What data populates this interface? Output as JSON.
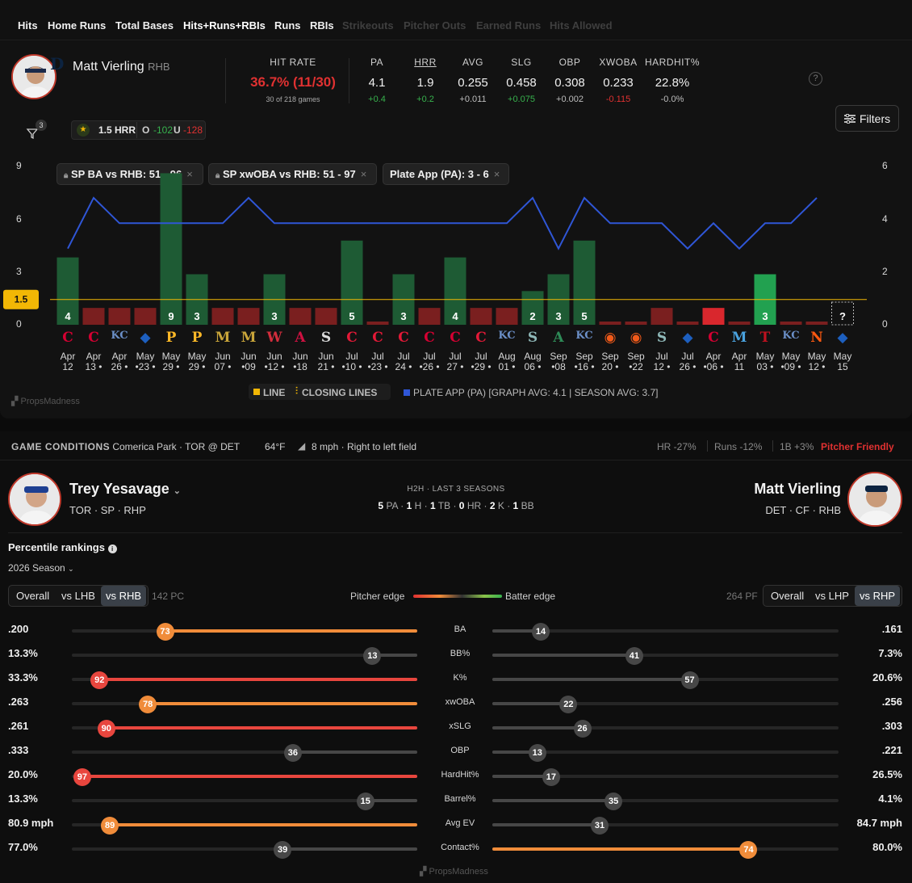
{
  "tabs": [
    {
      "label": "Hits",
      "state": "normal"
    },
    {
      "label": "Home Runs",
      "state": "normal"
    },
    {
      "label": "Total Bases",
      "state": "normal"
    },
    {
      "label": "Hits+Runs+RBIs",
      "state": "active"
    },
    {
      "label": "Runs",
      "state": "normal"
    },
    {
      "label": "RBIs",
      "state": "normal"
    },
    {
      "label": "Strikeouts",
      "state": "dim"
    },
    {
      "label": "Pitcher Outs",
      "state": "dim"
    },
    {
      "label": "Earned Runs",
      "state": "dim"
    },
    {
      "label": "Hits Allowed",
      "state": "dim"
    }
  ],
  "player": {
    "name": "Matt Vierling",
    "handed": "RHB",
    "line": "1.5 HRR",
    "over_label": "O",
    "over_odds": "-102",
    "under_label": "U",
    "under_odds": "-128"
  },
  "hit_rate": {
    "label": "HIT RATE",
    "value": "36.7% (11/30)",
    "sub": "30 of 218 games"
  },
  "stats": [
    {
      "h": "PA",
      "v": "4.1",
      "d": "+0.4",
      "c": "green"
    },
    {
      "h": "HRR",
      "v": "1.9",
      "d": "+0.2",
      "c": "green"
    },
    {
      "h": "AVG",
      "v": "0.255",
      "d": "+0.011",
      "c": "gray"
    },
    {
      "h": "SLG",
      "v": "0.458",
      "d": "+0.075",
      "c": "green"
    },
    {
      "h": "OBP",
      "v": "0.308",
      "d": "+0.002",
      "c": "gray"
    },
    {
      "h": "XWOBA",
      "v": "0.233",
      "d": "-0.115",
      "c": "red"
    },
    {
      "h": "HARDHIT%",
      "v": "22.8%",
      "d": "-0.0%",
      "c": "gray"
    }
  ],
  "filters_label": "Filters",
  "filter_count": "3",
  "chips": [
    "SP BA vs RHB: 51 - 96",
    "SP xwOBA vs RHB: 51 - 97",
    "Plate App (PA): 3 - 6"
  ],
  "chart_data": {
    "type": "bar",
    "line_value": 1.5,
    "line_label": "1.5",
    "left_ticks": [
      "9",
      "6",
      "3",
      "0"
    ],
    "right_ticks": [
      "6",
      "4",
      "2",
      "0"
    ],
    "ylim": [
      0,
      9.5
    ],
    "y2lim": [
      0,
      6.3
    ],
    "values": [
      4,
      1,
      1,
      1,
      9,
      3,
      1,
      1,
      3,
      1,
      1,
      5,
      0,
      3,
      1,
      4,
      1,
      1,
      2,
      3,
      5,
      0,
      0,
      1,
      0,
      1,
      0,
      3,
      0,
      0,
      null
    ],
    "bar_labels": [
      "4",
      "",
      "",
      "",
      "9",
      "3",
      "",
      "",
      "3",
      "",
      "",
      "5",
      "",
      "3",
      "",
      "4",
      "",
      "",
      "2",
      "3",
      "5",
      "",
      "",
      "",
      "",
      "",
      "",
      "3",
      "",
      "",
      "?"
    ],
    "pa": [
      3,
      5,
      4,
      4,
      4,
      4,
      4,
      5,
      4,
      4,
      4,
      4,
      4,
      4,
      4,
      4,
      4,
      4,
      5,
      3,
      5,
      4,
      4,
      4,
      3,
      4,
      3,
      4,
      4,
      5,
      null
    ],
    "dates": [
      [
        "Apr",
        "12"
      ],
      [
        "Apr",
        "13 •"
      ],
      [
        "Apr",
        "26 •"
      ],
      [
        "May",
        "•23 •"
      ],
      [
        "May",
        "29 •"
      ],
      [
        "May",
        "29 •"
      ],
      [
        "Jun",
        "07 •"
      ],
      [
        "Jun",
        "•09"
      ],
      [
        "Jun",
        "•12 •"
      ],
      [
        "Jun",
        "•18"
      ],
      [
        "Jun",
        "21 •"
      ],
      [
        "Jul",
        "•10 •"
      ],
      [
        "Jul",
        "•23 •"
      ],
      [
        "Jul",
        "24 •"
      ],
      [
        "Jul",
        "•26 •"
      ],
      [
        "Jul",
        "27 •"
      ],
      [
        "Jul",
        "•29 •"
      ],
      [
        "Aug",
        "01 •"
      ],
      [
        "Aug",
        "06 •"
      ],
      [
        "Sep",
        "•08"
      ],
      [
        "Sep",
        "•16 •"
      ],
      [
        "Sep",
        "20 •"
      ],
      [
        "Sep",
        "•22"
      ],
      [
        "Jul",
        "12 •"
      ],
      [
        "Jul",
        "26 •"
      ],
      [
        "Apr",
        "•06 •"
      ],
      [
        "Apr",
        "11"
      ],
      [
        "May",
        "03 •"
      ],
      [
        "May",
        "•09 •"
      ],
      [
        "May",
        "12 •"
      ],
      [
        "May",
        "15"
      ]
    ],
    "opponents": [
      "CIN",
      "CIN",
      "KC",
      "TOR",
      "PIT",
      "PIT",
      "MIL",
      "MIL",
      "WSH",
      "ATL",
      "CWS",
      "CLE",
      "CLE",
      "CLE",
      "CIN",
      "CIN",
      "CLE",
      "KC",
      "SEA",
      "OAK",
      "KC",
      "BAL",
      "BAL",
      "SEA",
      "TOR",
      "CIN",
      "MIA",
      "TEX",
      "KC",
      "NYM",
      "TOR"
    ],
    "legend": [
      "LINE",
      "CLOSING LINES",
      "PLATE APP (PA) [GRAPH AVG: 4.1 | SEASON AVG: 3.7]"
    ],
    "watermark": "PropsMadness",
    "colors": {
      "over": "#1e5b34",
      "over_bright": "#22a150",
      "under": "#7a1f1f",
      "under_bright": "#d9272d",
      "pa": "#2f56d6",
      "line": "#f2b705"
    }
  },
  "conditions": {
    "label": "GAME CONDITIONS",
    "park": "· Comerica Park · TOR @ DET",
    "temp": "64°F",
    "wind": "8 mph · Right to left field",
    "hr": "HR -27%",
    "runs": "Runs -12%",
    "singles": "1B +3%",
    "verdict": "Pitcher Friendly"
  },
  "pitcher": {
    "name": "Trey Yesavage",
    "meta": "TOR · SP · RHP"
  },
  "batter": {
    "name": "Matt Vierling",
    "meta": "DET · CF · RHB"
  },
  "h2h": {
    "title": "H2H · LAST 3 SEASONS",
    "pa": "5",
    "pa_l": "PA",
    "h": "1",
    "h_l": "H",
    "tb": "1",
    "tb_l": "TB",
    "hr": "0",
    "hr_l": "HR",
    "k": "2",
    "k_l": "K",
    "bb": "1",
    "bb_l": "BB"
  },
  "percentile": {
    "title": "Percentile rankings",
    "season": "2026 Season",
    "left_tabs": [
      "Overall",
      "vs LHB",
      "vs RHB"
    ],
    "left_count": "142 PC",
    "right_count": "264 PF",
    "right_tabs": [
      "Overall",
      "vs LHP",
      "vs RHP"
    ],
    "pitcher_edge": "Pitcher edge",
    "batter_edge": "Batter edge"
  },
  "rows": [
    {
      "metric": "BA",
      "lv": ".200",
      "lp": 73,
      "rv": ".161",
      "rp": 14
    },
    {
      "metric": "BB%",
      "lv": "13.3%",
      "lp": 13,
      "rv": "7.3%",
      "rp": 41
    },
    {
      "metric": "K%",
      "lv": "33.3%",
      "lp": 92,
      "rv": "20.6%",
      "rp": 57
    },
    {
      "metric": "xwOBA",
      "lv": ".263",
      "lp": 78,
      "rv": ".256",
      "rp": 22
    },
    {
      "metric": "xSLG",
      "lv": ".261",
      "lp": 90,
      "rv": ".303",
      "rp": 26
    },
    {
      "metric": "OBP",
      "lv": ".333",
      "lp": 36,
      "rv": ".221",
      "rp": 13
    },
    {
      "metric": "HardHit%",
      "lv": "20.0%",
      "lp": 97,
      "rv": "26.5%",
      "rp": 17
    },
    {
      "metric": "Barrel%",
      "lv": "13.3%",
      "lp": 15,
      "rv": "4.1%",
      "rp": 35
    },
    {
      "metric": "Avg EV",
      "lv": "80.9 mph",
      "lp": 89,
      "rv": "84.7 mph",
      "rp": 31
    },
    {
      "metric": "Contact%",
      "lv": "77.0%",
      "lp": 39,
      "rv": "80.0%",
      "rp": 74
    }
  ],
  "watermark2": "PropsMadness"
}
